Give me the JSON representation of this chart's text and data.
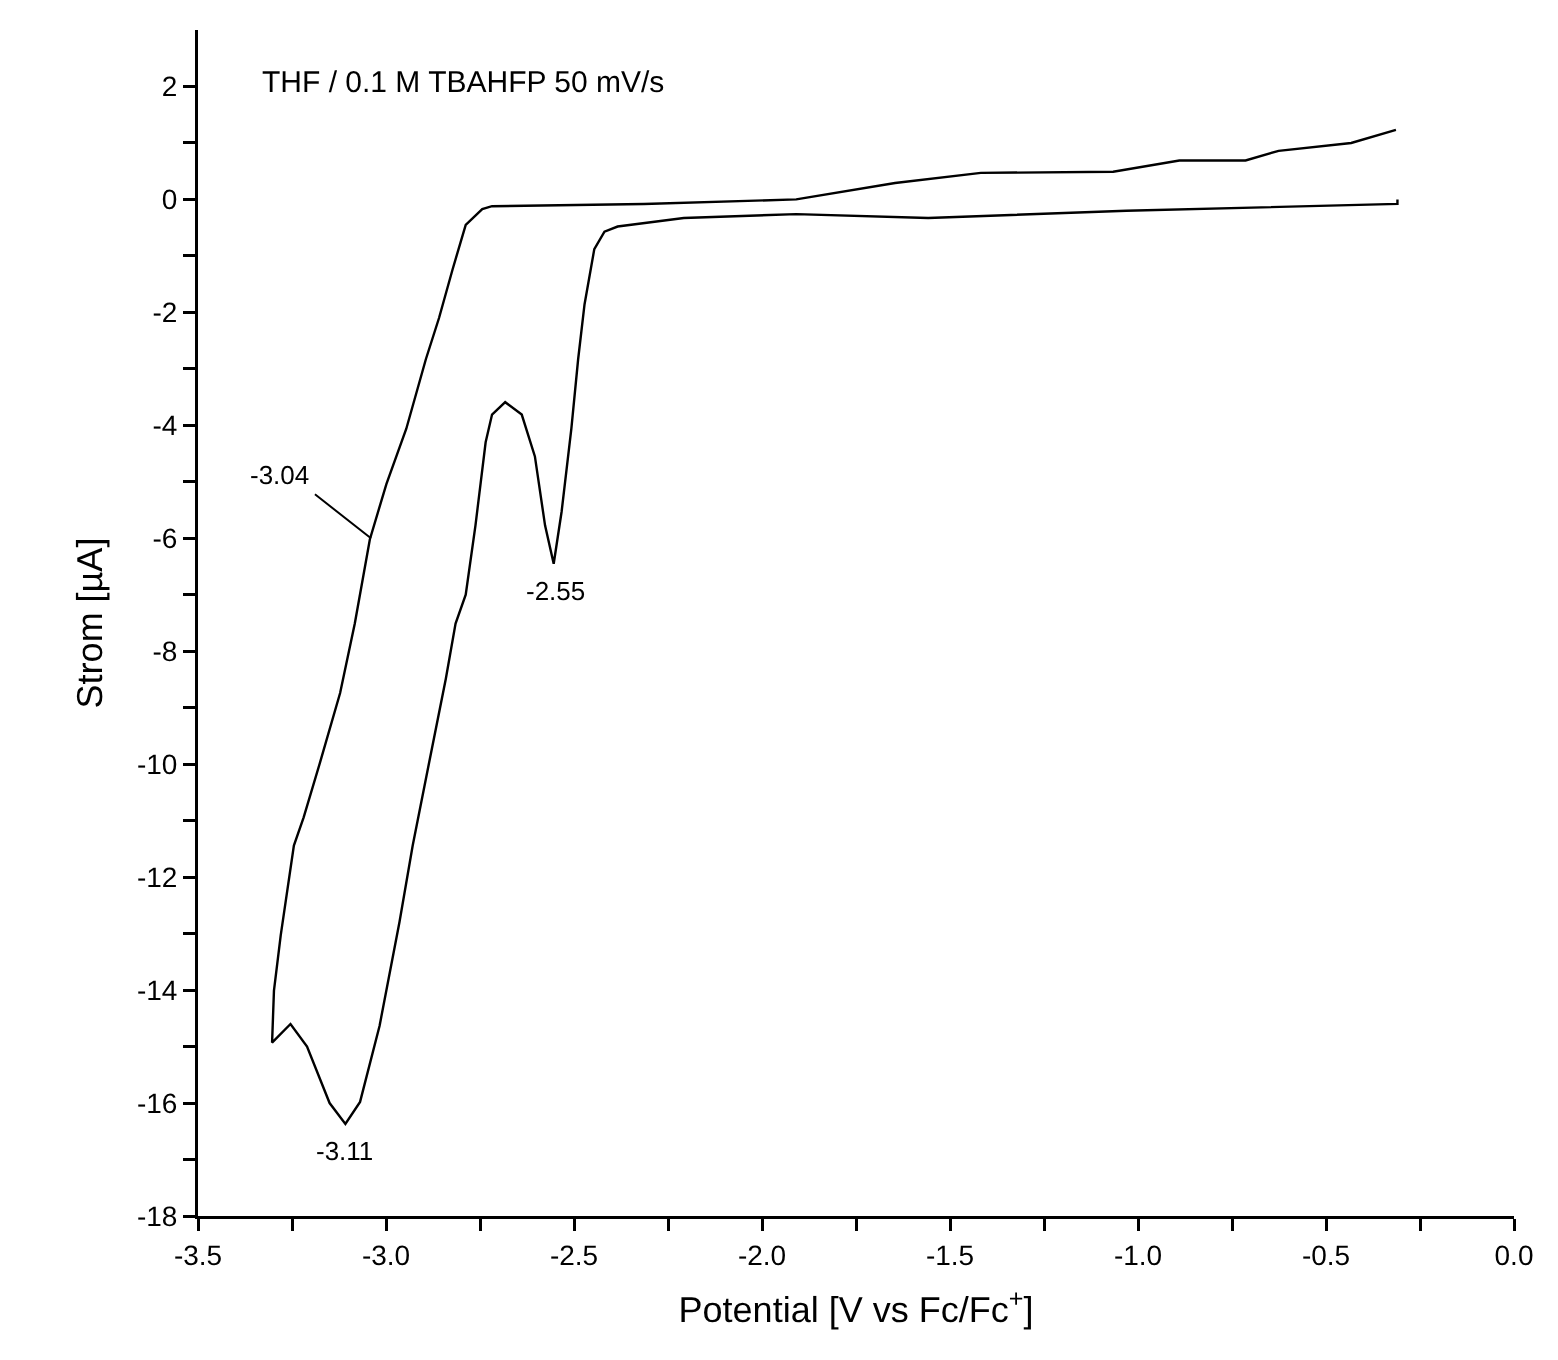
{
  "chart_data": {
    "type": "line",
    "xlabel": "Potential [V vs Fc/Fc$^{+}$]",
    "ylabel": "Strom [µA]",
    "annotations": [
      "THF / 0.1 M TBAHFP 50 mV/s",
      {
        "text": "-3.04",
        "x": -3.04,
        "y": -6.0
      },
      {
        "text": "-2.55",
        "x": -2.55,
        "y": -6.45
      },
      {
        "text": "-3.11",
        "x": -3.11,
        "y": -16.37
      }
    ],
    "series": [
      {
        "color": "#000000",
        "x": [
          -0.31,
          -0.31,
          -1.031,
          -1.558,
          -1.909,
          -2.208,
          -2.384,
          -2.419,
          -2.446,
          -2.472,
          -2.489,
          -2.507,
          -2.533,
          -2.554,
          -2.577,
          -2.604,
          -2.639,
          -2.683,
          -2.718,
          -2.735,
          -2.762,
          -2.788,
          -2.815,
          -2.841,
          -2.885,
          -2.929,
          -2.964,
          -3.017,
          -3.069,
          -3.108,
          -3.15,
          -3.21,
          -3.254,
          -3.303,
          -3.298,
          -3.28,
          -3.245,
          -3.219,
          -3.175,
          -3.122,
          -3.083,
          -3.043,
          -2.999,
          -2.946,
          -2.894,
          -2.859,
          -2.823,
          -2.788,
          -2.744,
          -2.718,
          -2.314,
          -1.909,
          -1.646,
          -1.418,
          -1.066,
          -0.89,
          -0.714,
          -0.626,
          -0.433,
          -0.314
        ],
        "values": [
          0.0,
          -0.08,
          -0.2,
          -0.33,
          -0.26,
          -0.33,
          -0.48,
          -0.57,
          -0.88,
          -1.86,
          -2.83,
          -4.06,
          -5.53,
          -6.45,
          -5.77,
          -4.55,
          -3.81,
          -3.59,
          -3.81,
          -4.3,
          -5.77,
          -7.0,
          -7.51,
          -8.49,
          -9.96,
          -11.44,
          -12.79,
          -14.63,
          -15.98,
          -16.37,
          -16.0,
          -15.0,
          -14.6,
          -14.93,
          -14.01,
          -13.03,
          -11.44,
          -10.94,
          -9.96,
          -8.74,
          -7.51,
          -6.02,
          -5.04,
          -4.06,
          -2.83,
          -2.1,
          -1.24,
          -0.45,
          -0.17,
          -0.12,
          -0.08,
          0.0,
          0.29,
          0.47,
          0.49,
          0.69,
          0.69,
          0.86,
          1.0,
          1.23
        ]
      }
    ],
    "xlim": [
      -3.5,
      0.0
    ],
    "xticks": [
      -3.5,
      {
        "value": -3.25,
        "label": null
      },
      {
        "value": -3,
        "label": "-3.0"
      },
      {
        "value": -2.75,
        "label": null
      },
      -2.5,
      {
        "value": -2.25,
        "label": null
      },
      {
        "value": -2,
        "label": "-2.0"
      },
      {
        "value": -1.75,
        "label": null
      },
      -1.5,
      {
        "value": -1.25,
        "label": null
      },
      {
        "value": -1,
        "label": "-1.0"
      },
      {
        "value": -0.75,
        "label": null
      },
      -0.5,
      {
        "value": -0.25,
        "label": null
      },
      {
        "value": 0,
        "label": "0.0"
      }
    ],
    "ylim": [
      -18,
      3
    ],
    "yticks": [
      -18,
      {
        "value": -17,
        "label": null
      },
      -16,
      {
        "value": -15,
        "label": null
      },
      -14,
      {
        "value": -13,
        "label": null
      },
      -12,
      {
        "value": -11,
        "label": null
      },
      -10,
      {
        "value": -9,
        "label": null
      },
      -8,
      {
        "value": -7,
        "label": null
      },
      -6,
      {
        "value": -5,
        "label": null
      },
      -4,
      {
        "value": -3,
        "label": null
      },
      -2,
      {
        "value": -1,
        "label": null
      },
      0,
      {
        "value": 1,
        "label": null
      },
      2
    ],
    "grid": false,
    "marker": "none",
    "line_style": "solid"
  }
}
